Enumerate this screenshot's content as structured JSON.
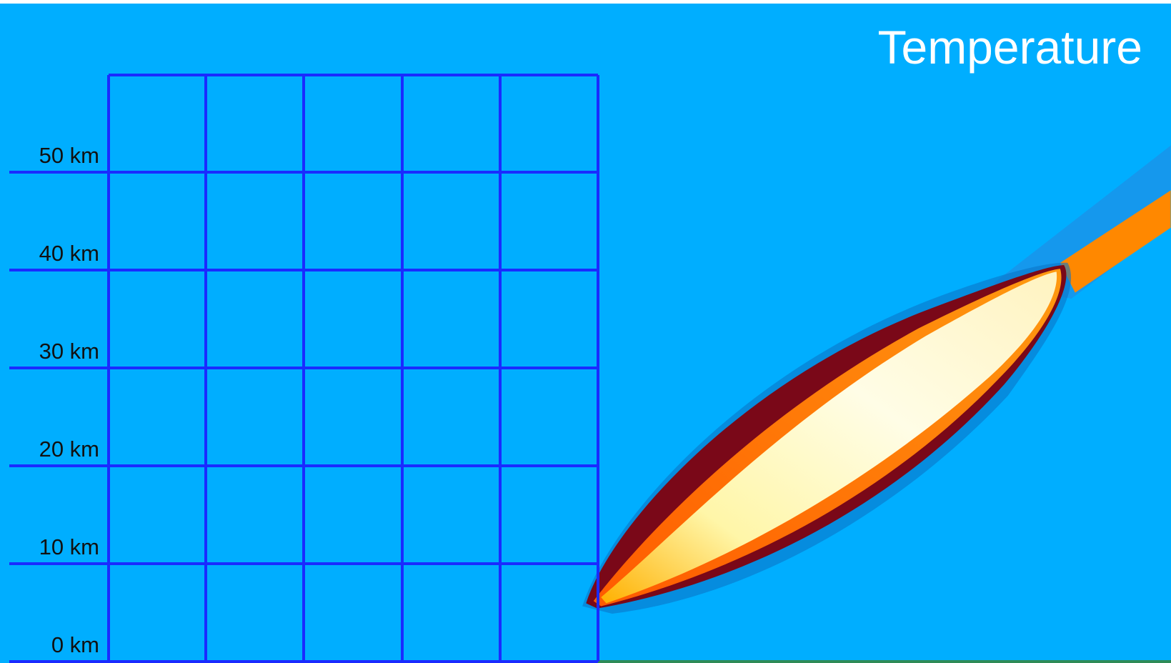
{
  "title": "Temperature",
  "altitude_labels": [
    "50 km",
    "40 km",
    "30 km",
    "20 km",
    "10 km",
    "0 km"
  ]
}
